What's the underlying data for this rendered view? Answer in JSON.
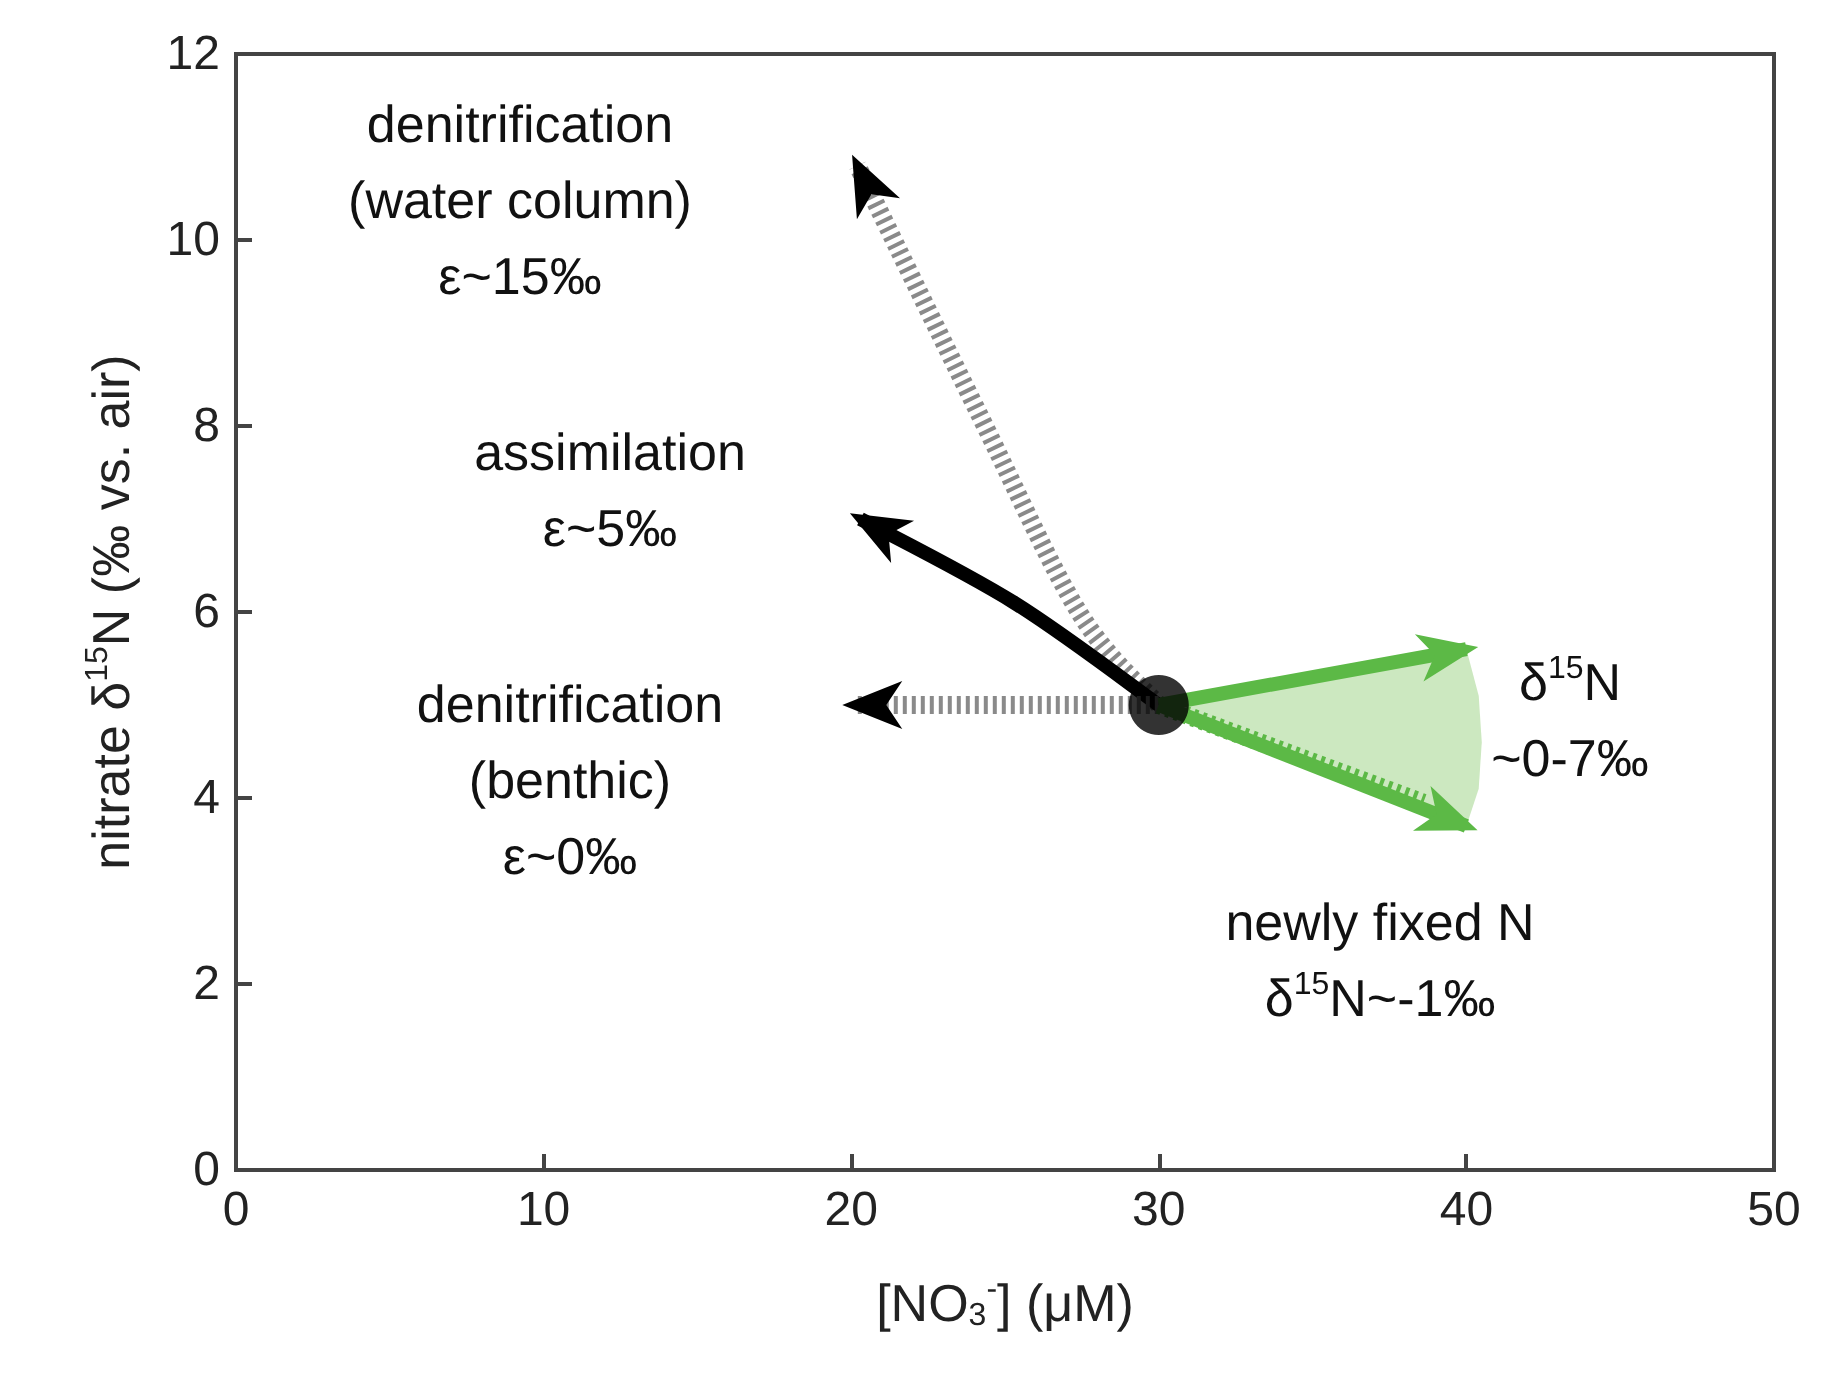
{
  "chart_data": {
    "type": "scatter",
    "xlabel": "[NO$_{3}$$^{-}$] (μM)",
    "ylabel": "nitrate δ$^{15}$N (‰ vs. air)",
    "xlim": [
      0,
      50
    ],
    "xticks": [
      0,
      10,
      20,
      30,
      40,
      50
    ],
    "ylim": [
      0,
      12
    ],
    "yticks": [
      0,
      2,
      4,
      6,
      8,
      10,
      12
    ],
    "grid": false,
    "series": [
      {
        "color": "#000000",
        "marker": "circle",
        "x": [
          30
        ],
        "values": [
          5
        ]
      }
    ],
    "annotations": [
      "denitrification\n(water column)\nε~15‰",
      "assimilation\nε~5‰",
      "denitrification\n(benthic)\nε~0‰",
      "δ$^{15}$N\n~0-7‰",
      "newly fixed N\nδ$^{15}$N~-1‰"
    ]
  }
}
